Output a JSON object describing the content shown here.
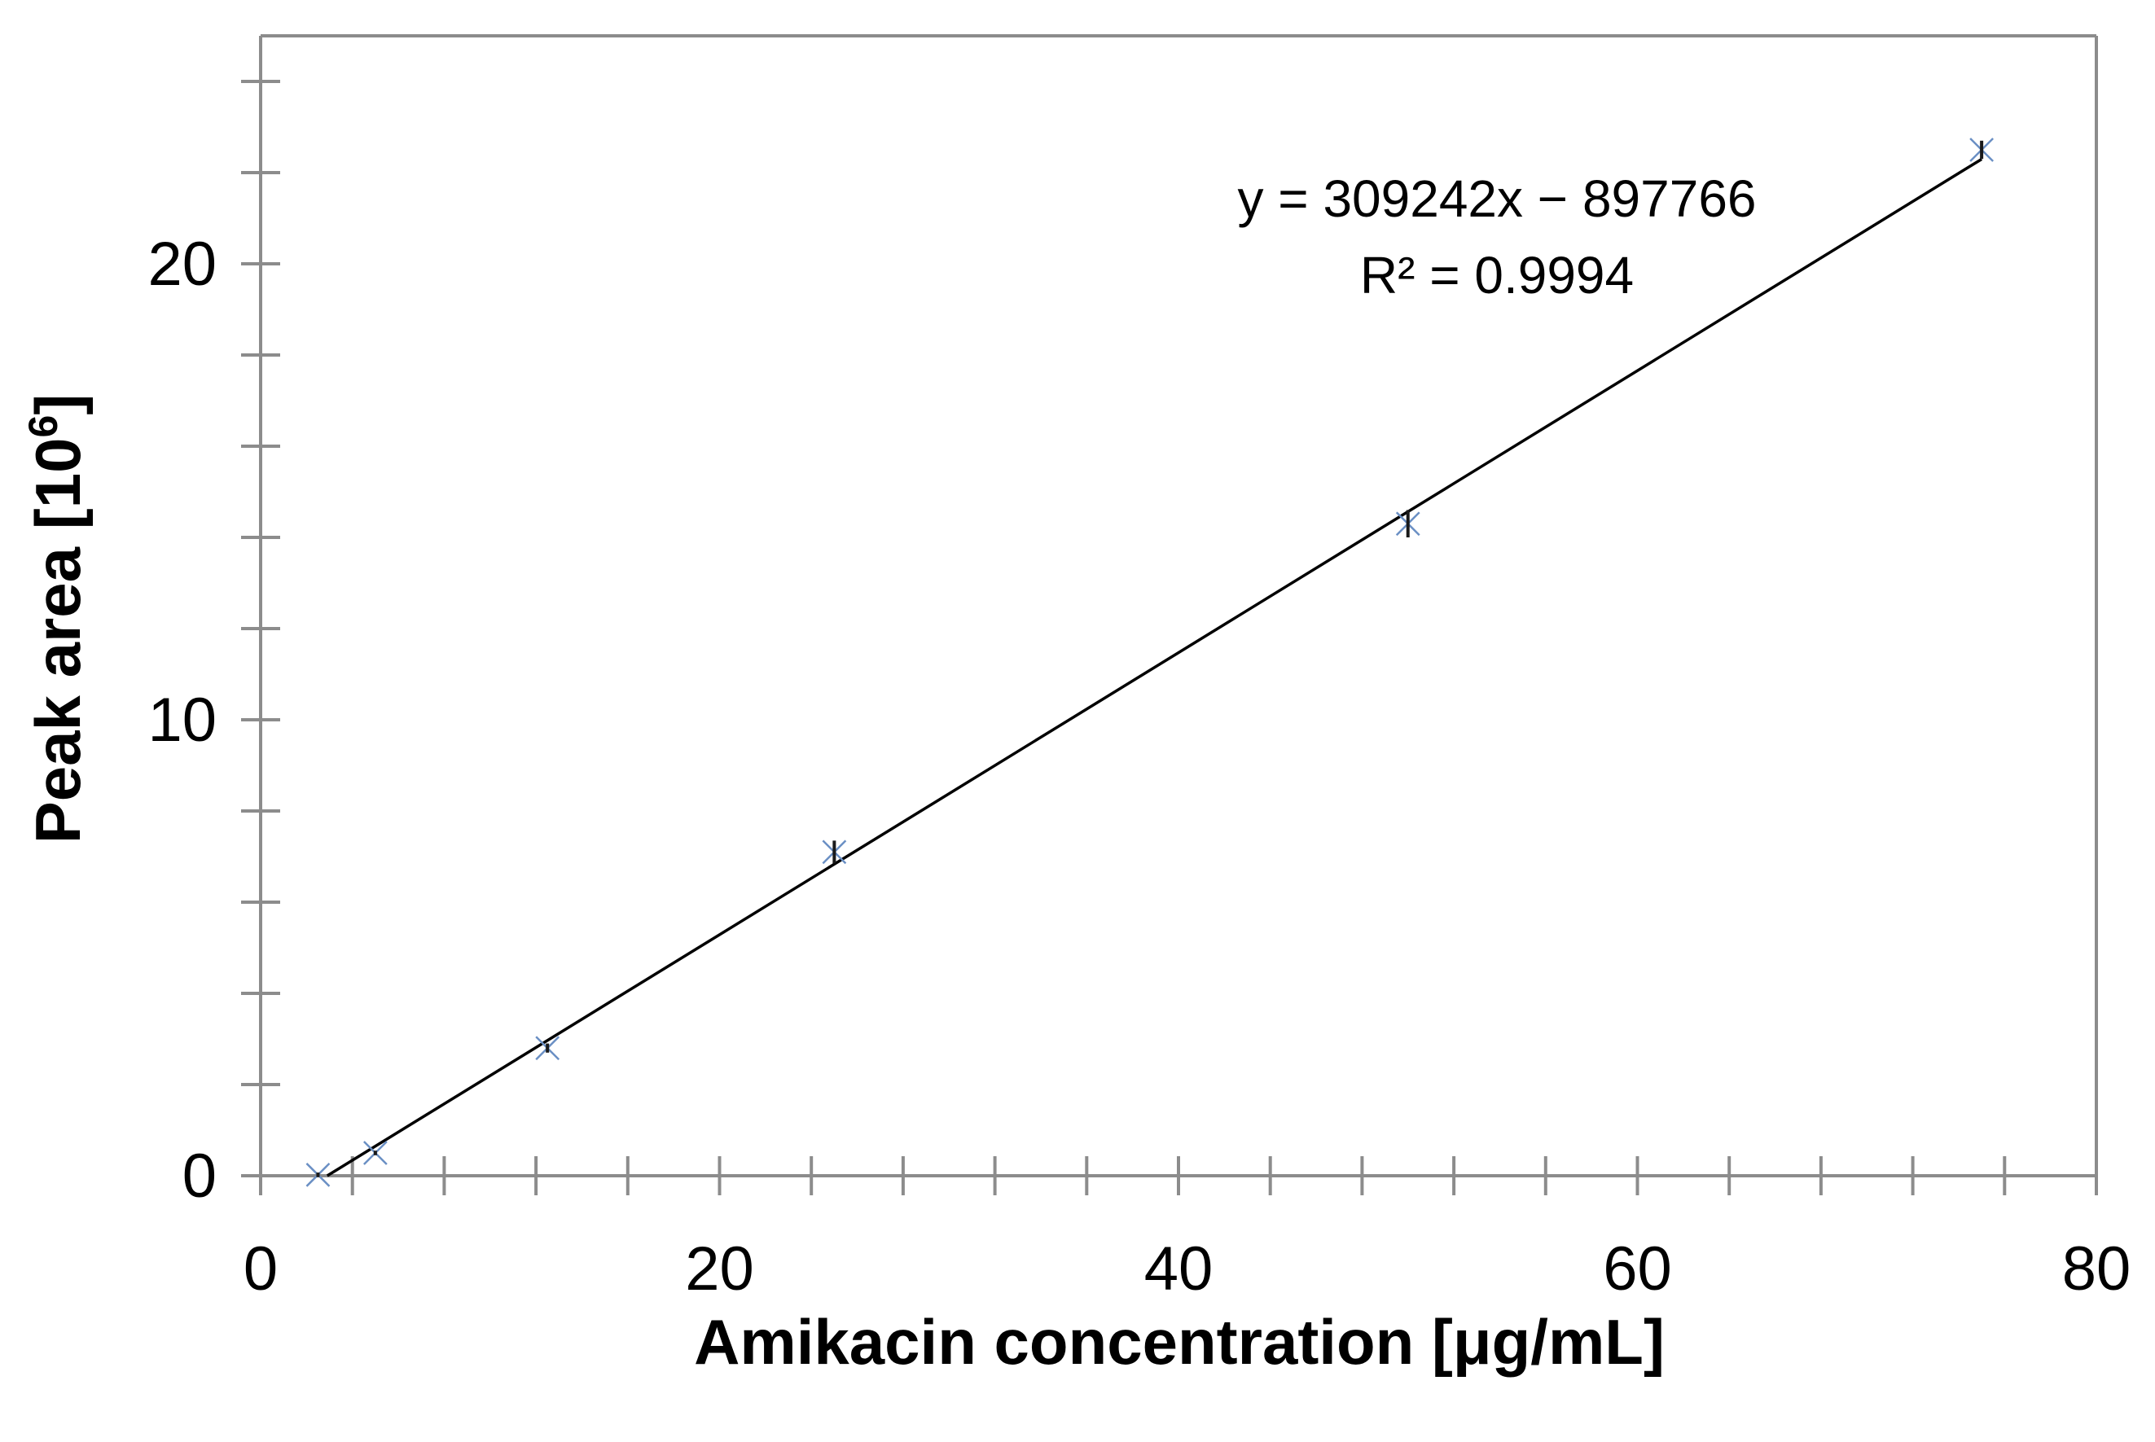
{
  "chart_data": {
    "type": "scatter",
    "xlabel": "Amikacin concentration [μg/mL]",
    "ylabel_main": "Peak area [10",
    "ylabel_sup": "6",
    "ylabel_close": "]",
    "xlim": [
      0,
      80
    ],
    "ylim": [
      0,
      25
    ],
    "x_ticks": [
      0,
      20,
      40,
      60,
      80
    ],
    "x_tick_labels": [
      "0",
      "20",
      "40",
      "60",
      "80"
    ],
    "x_minor_step": 4,
    "y_ticks": [
      0,
      10,
      20
    ],
    "y_tick_labels": [
      "0",
      "10",
      "20"
    ],
    "y_minor_step": 2,
    "grid": false,
    "series": [
      {
        "marker": "x",
        "color": "#6a8fc4",
        "points": [
          {
            "x": 2.5,
            "y": 0.02,
            "err": 0.05
          },
          {
            "x": 5,
            "y": 0.5,
            "err": 0.05
          },
          {
            "x": 12.5,
            "y": 2.8,
            "err": 0.1
          },
          {
            "x": 25,
            "y": 7.1,
            "err": 0.25
          },
          {
            "x": 50,
            "y": 14.3,
            "err": 0.3
          },
          {
            "x": 75,
            "y": 22.5,
            "err": 0.2
          }
        ]
      }
    ],
    "trendline": {
      "slope": 309242,
      "intercept": -897766,
      "scale": 1000000,
      "color": "#000000",
      "equation": "y = 309242x − 897766",
      "r2_text": "R² = 0.9994"
    }
  }
}
